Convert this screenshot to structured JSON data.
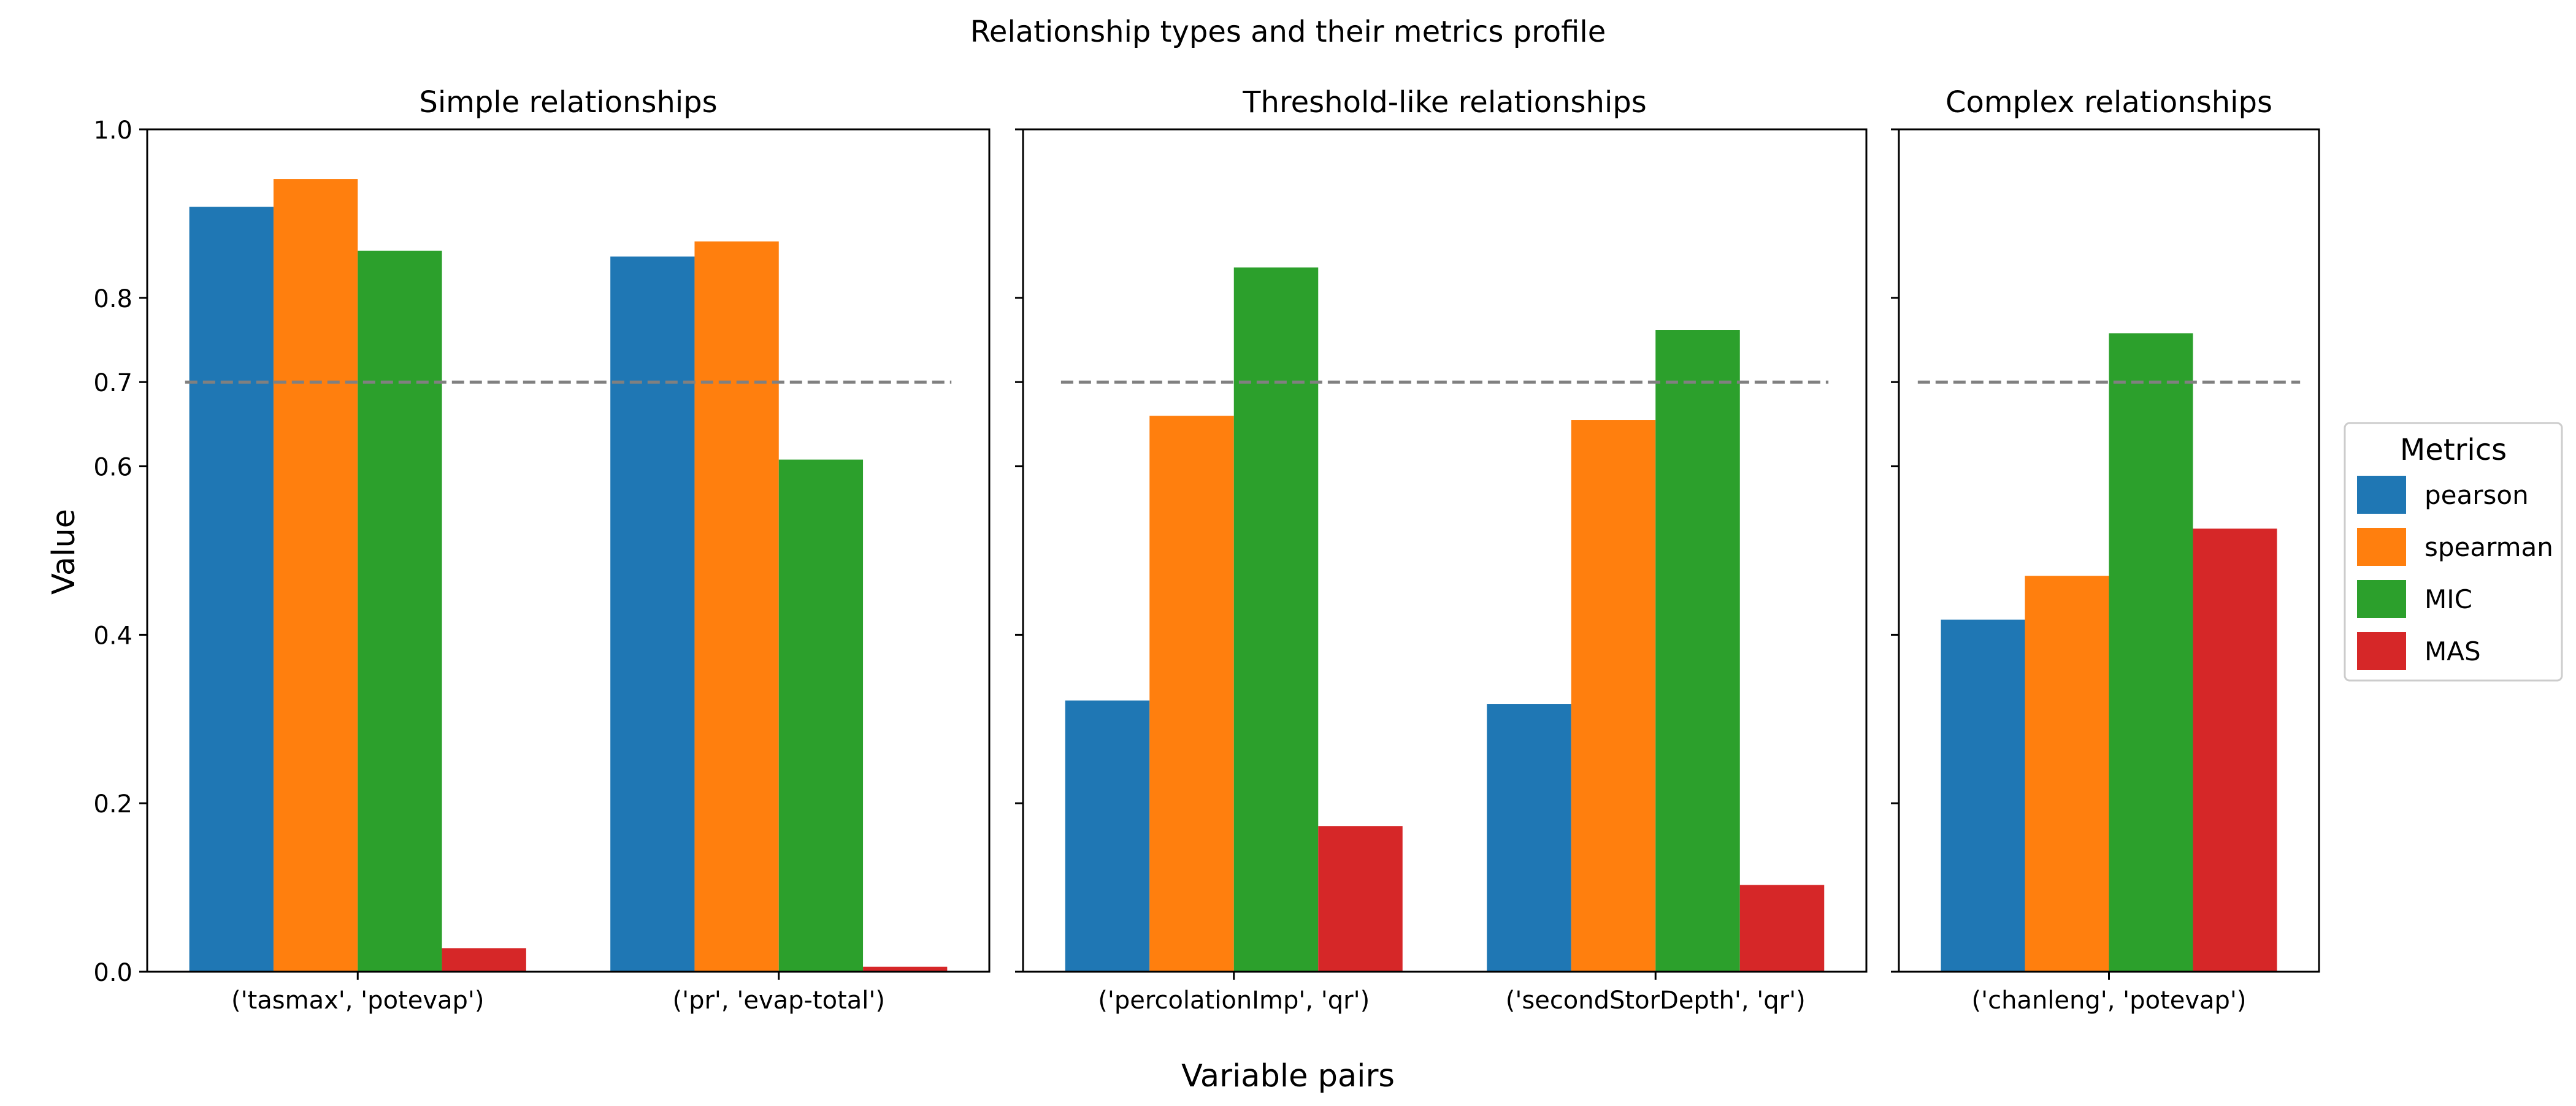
{
  "chart_data": {
    "type": "bar",
    "title": "Relationship types and their metrics profile",
    "xlabel": "Variable pairs",
    "ylabel": "Value",
    "ylim": [
      0,
      1
    ],
    "yticks": [
      0.0,
      0.2,
      0.4,
      0.6,
      0.7,
      0.8,
      1.0
    ],
    "ytick_labels": [
      "0.0",
      "0.2",
      "0.4",
      "0.6",
      "0.7",
      "0.8",
      "1.0"
    ],
    "reference_line": {
      "y": 0.7,
      "style": "dashed",
      "color": "#808080"
    },
    "legend": {
      "title": "Metrics",
      "placement": "right",
      "entries": [
        "pearson",
        "spearman",
        "MIC",
        "MAS"
      ]
    },
    "colors": {
      "pearson": "#1f77b4",
      "spearman": "#ff7f0e",
      "MIC": "#2ca02c",
      "MAS": "#d62728"
    },
    "panels": [
      {
        "title": "Simple relationships",
        "categories": [
          "('tasmax', 'potevap')",
          "('pr', 'evap-total')"
        ],
        "series": [
          {
            "name": "pearson",
            "values": [
              0.908,
              0.849
            ]
          },
          {
            "name": "spearman",
            "values": [
              0.941,
              0.867
            ]
          },
          {
            "name": "MIC",
            "values": [
              0.856,
              0.608
            ]
          },
          {
            "name": "MAS",
            "values": [
              0.028,
              0.006
            ]
          }
        ]
      },
      {
        "title": "Threshold-like relationships",
        "categories": [
          "('percolationImp', 'qr')",
          "('secondStorDepth', 'qr')"
        ],
        "series": [
          {
            "name": "pearson",
            "values": [
              0.322,
              0.318
            ]
          },
          {
            "name": "spearman",
            "values": [
              0.66,
              0.655
            ]
          },
          {
            "name": "MIC",
            "values": [
              0.836,
              0.762
            ]
          },
          {
            "name": "MAS",
            "values": [
              0.173,
              0.103
            ]
          }
        ]
      },
      {
        "title": "Complex relationships",
        "categories": [
          "('chanleng', 'potevap')"
        ],
        "series": [
          {
            "name": "pearson",
            "values": [
              0.418
            ]
          },
          {
            "name": "spearman",
            "values": [
              0.47
            ]
          },
          {
            "name": "MIC",
            "values": [
              0.758
            ]
          },
          {
            "name": "MAS",
            "values": [
              0.526
            ]
          }
        ]
      }
    ]
  }
}
